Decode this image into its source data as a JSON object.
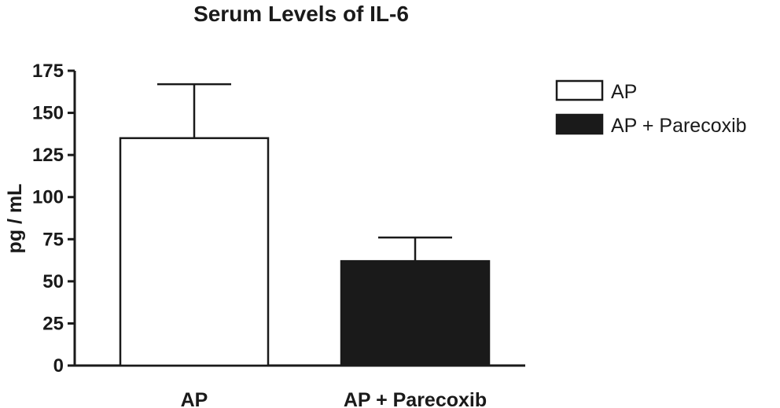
{
  "chart_data": {
    "type": "bar",
    "title": "Serum Levels of IL-6",
    "ylabel": "pg / mL",
    "xlabel": "",
    "categories": [
      "AP",
      "AP + Parecoxib"
    ],
    "values": [
      135,
      62
    ],
    "error_upper": [
      167,
      76
    ],
    "fills": [
      "#ffffff",
      "#1a1a1a"
    ],
    "ylim": [
      0,
      175
    ],
    "yticks": [
      0,
      25,
      50,
      75,
      100,
      125,
      150,
      175
    ],
    "legend": {
      "position": "top-right",
      "entries": [
        {
          "label": "AP",
          "fill": "#ffffff"
        },
        {
          "label": "AP + Parecoxib",
          "fill": "#1a1a1a"
        }
      ]
    },
    "grid": false
  },
  "colors": {
    "ink": "#1a1a1a",
    "background": "#ffffff"
  }
}
